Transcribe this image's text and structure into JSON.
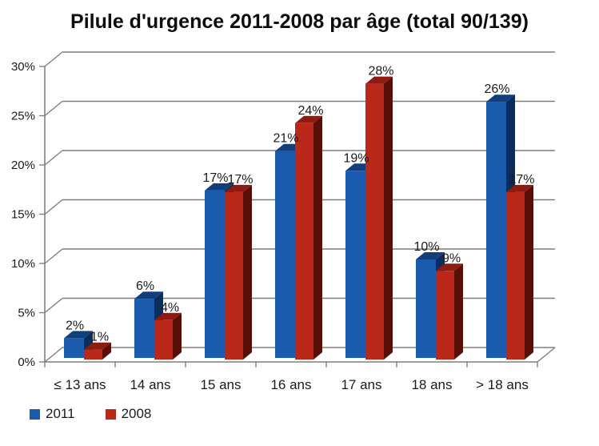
{
  "title": "Pilule d'urgence 2011-2008 par âge (total 90/139)",
  "legend": {
    "items": [
      {
        "label": "2011",
        "color": "#1a5bad"
      },
      {
        "label": "2008",
        "color": "#b92819"
      }
    ]
  },
  "chart_data": {
    "type": "bar",
    "style": "3d-clustered-column",
    "title": "Pilule d'urgence 2011-2008 par âge (total 90/139)",
    "categories": [
      "≤ 13 ans",
      "14 ans",
      "15 ans",
      "16 ans",
      "17 ans",
      "18 ans",
      "> 18 ans"
    ],
    "series": [
      {
        "name": "2011",
        "values": [
          2,
          6,
          17,
          21,
          19,
          10,
          26
        ],
        "data_labels": [
          "2%",
          "6%",
          "17%",
          "21%",
          "19%",
          "10%",
          "26%"
        ],
        "front_color": "#1a5bad",
        "top_color": "#123e7c",
        "side_color": "#0c2c5d"
      },
      {
        "name": "2008",
        "values": [
          1,
          4,
          17,
          24,
          28,
          9,
          17
        ],
        "data_labels": [
          "1%",
          "4%",
          "17%",
          "24%",
          "28%",
          "9%",
          "17%"
        ],
        "front_color": "#b92819",
        "top_color": "#8e1a10",
        "side_color": "#5a0e08"
      }
    ],
    "y_axis": {
      "min": 0,
      "max": 30,
      "step": 5,
      "tick_labels": [
        "0%",
        "5%",
        "10%",
        "15%",
        "20%",
        "25%",
        "30%"
      ]
    },
    "grid": true,
    "legend_position": "bottom-left",
    "colors": {
      "grid": "#7f7f7f",
      "text": "#1a1a1a",
      "background": "#ffffff"
    }
  }
}
